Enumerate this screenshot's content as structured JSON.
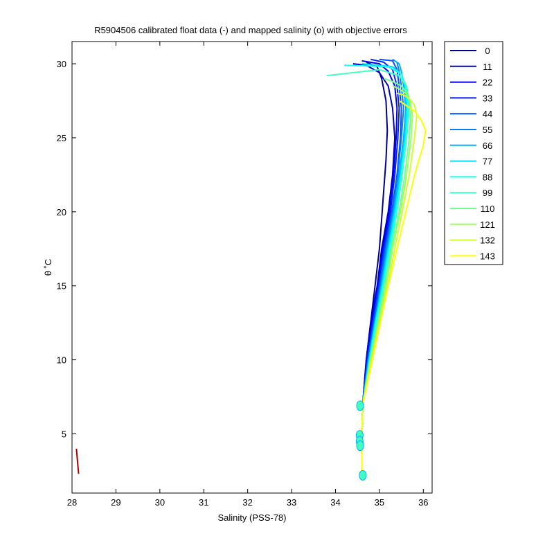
{
  "chart_data": {
    "type": "line",
    "title": "R5904506 calibrated float data (-) and mapped salinity (o) with objective errors",
    "xlabel": "Salinity (PSS-78)",
    "ylabel": "θ ˚C",
    "xlim": [
      28,
      36.2
    ],
    "ylim": [
      1,
      31.5
    ],
    "xticks": [
      28,
      29,
      30,
      31,
      32,
      33,
      34,
      35,
      36
    ],
    "yticks": [
      5,
      10,
      15,
      20,
      25,
      30
    ],
    "grid": false,
    "legend_position": "outside-right",
    "series": [
      {
        "name": "0",
        "color": "#00008f",
        "x": [
          34.6,
          34.6,
          34.62,
          34.7,
          34.8,
          34.9,
          35.0,
          35.05,
          35.1,
          35.15,
          35.18,
          35.15,
          35.05,
          34.95,
          34.7
        ],
        "y": [
          2.2,
          4.5,
          7.0,
          10.0,
          12.5,
          15.0,
          17.5,
          19.5,
          21.5,
          23.5,
          25.5,
          27.5,
          29.0,
          29.8,
          30.1
        ]
      },
      {
        "name": "11",
        "color": "#0000bf",
        "x": [
          34.6,
          34.6,
          34.62,
          34.7,
          34.8,
          34.95,
          35.05,
          35.2,
          35.3,
          35.35,
          35.3,
          35.2,
          35.0,
          34.7,
          34.4
        ],
        "y": [
          2.2,
          4.5,
          7.0,
          10.0,
          12.5,
          15.0,
          17.5,
          20.0,
          22.5,
          25.0,
          27.0,
          28.5,
          29.4,
          29.9,
          30.0
        ]
      },
      {
        "name": "22",
        "color": "#0000ef",
        "x": [
          34.6,
          34.6,
          34.62,
          34.72,
          34.82,
          34.96,
          35.08,
          35.22,
          35.32,
          35.38,
          35.4,
          35.35,
          35.2,
          35.0,
          34.6
        ],
        "y": [
          2.2,
          4.5,
          7.0,
          10.0,
          12.5,
          15.0,
          17.5,
          20.0,
          22.5,
          25.0,
          27.0,
          28.5,
          29.5,
          30.0,
          30.2
        ]
      },
      {
        "name": "33",
        "color": "#001fff",
        "x": [
          34.6,
          34.6,
          34.62,
          34.72,
          34.84,
          34.98,
          35.1,
          35.25,
          35.35,
          35.42,
          35.45,
          35.4,
          35.3,
          35.1,
          34.8
        ],
        "y": [
          2.2,
          4.5,
          7.0,
          10.0,
          12.5,
          15.0,
          17.5,
          20.0,
          22.5,
          25.0,
          27.0,
          28.5,
          29.6,
          30.1,
          30.3
        ]
      },
      {
        "name": "44",
        "color": "#004fff",
        "x": [
          34.6,
          34.6,
          34.62,
          34.74,
          34.86,
          35.0,
          35.12,
          35.28,
          35.4,
          35.48,
          35.5,
          35.45,
          35.4,
          35.3,
          35.0
        ],
        "y": [
          2.2,
          4.5,
          7.0,
          10.0,
          12.5,
          15.0,
          17.5,
          20.0,
          22.5,
          25.0,
          27.0,
          28.5,
          29.6,
          30.2,
          30.3
        ]
      },
      {
        "name": "55",
        "color": "#007fff",
        "x": [
          34.6,
          34.6,
          34.62,
          34.74,
          34.88,
          35.02,
          35.15,
          35.3,
          35.42,
          35.5,
          35.55,
          35.5,
          35.45,
          35.4,
          35.3
        ],
        "y": [
          2.2,
          4.5,
          7.0,
          10.0,
          12.5,
          15.0,
          17.5,
          20.0,
          22.5,
          25.0,
          27.0,
          28.5,
          29.5,
          30.1,
          30.3
        ]
      },
      {
        "name": "66",
        "color": "#00afff",
        "x": [
          34.6,
          34.6,
          34.62,
          34.76,
          34.9,
          35.04,
          35.18,
          35.33,
          35.45,
          35.55,
          35.6,
          35.55,
          35.5,
          35.45,
          35.35
        ],
        "y": [
          2.2,
          4.5,
          7.0,
          10.0,
          12.5,
          15.0,
          17.5,
          20.0,
          22.5,
          25.0,
          27.0,
          28.5,
          29.5,
          30.0,
          30.2
        ]
      },
      {
        "name": "77",
        "color": "#00dfff",
        "x": [
          34.6,
          34.6,
          34.62,
          34.76,
          34.9,
          35.06,
          35.2,
          35.35,
          35.48,
          35.58,
          35.62,
          35.58,
          35.5,
          35.3,
          34.6
        ],
        "y": [
          2.2,
          4.5,
          7.0,
          10.0,
          12.5,
          15.0,
          17.5,
          20.0,
          22.5,
          25.0,
          27.0,
          28.5,
          29.3,
          29.8,
          30.0
        ]
      },
      {
        "name": "88",
        "color": "#10ffef",
        "x": [
          34.6,
          34.6,
          34.62,
          34.78,
          34.92,
          35.08,
          35.22,
          35.38,
          35.5,
          35.6,
          35.65,
          35.6,
          35.5,
          35.2,
          34.2
        ],
        "y": [
          2.2,
          4.5,
          7.0,
          10.0,
          12.5,
          15.0,
          17.5,
          20.0,
          22.5,
          25.0,
          27.0,
          28.5,
          29.3,
          29.8,
          29.9
        ]
      },
      {
        "name": "99",
        "color": "#40ffbf",
        "x": [
          34.6,
          34.6,
          34.62,
          34.78,
          34.94,
          35.1,
          35.25,
          35.4,
          35.52,
          35.62,
          35.68,
          35.62,
          35.45,
          35.0,
          33.8
        ],
        "y": [
          2.2,
          4.5,
          7.0,
          10.0,
          12.5,
          15.0,
          17.5,
          20.0,
          22.5,
          25.0,
          27.0,
          28.5,
          29.2,
          29.6,
          29.2
        ]
      },
      {
        "name": "110",
        "color": "#70ff8f",
        "x": [
          34.6,
          34.6,
          34.62,
          34.8,
          34.96,
          35.12,
          35.28,
          35.45,
          35.58,
          35.68,
          35.72,
          35.65,
          35.5,
          35.3,
          35.1
        ],
        "y": [
          2.2,
          4.5,
          7.0,
          10.0,
          12.5,
          15.0,
          17.5,
          20.0,
          22.5,
          25.0,
          27.0,
          28.0,
          28.5,
          28.8,
          29.0
        ]
      },
      {
        "name": "121",
        "color": "#9fff5f",
        "x": [
          34.6,
          34.6,
          34.62,
          34.8,
          34.98,
          35.15,
          35.3,
          35.48,
          35.62,
          35.72,
          35.75,
          35.7,
          35.6,
          35.45,
          35.3
        ],
        "y": [
          2.2,
          4.5,
          7.0,
          10.0,
          12.5,
          15.0,
          17.5,
          20.0,
          22.5,
          25.0,
          26.5,
          27.5,
          28.0,
          28.3,
          28.5
        ]
      },
      {
        "name": "132",
        "color": "#cfff2f",
        "x": [
          34.6,
          34.6,
          34.62,
          34.82,
          35.0,
          35.18,
          35.35,
          35.52,
          35.68,
          35.8,
          35.85,
          35.8,
          35.7,
          35.55,
          35.4
        ],
        "y": [
          2.2,
          4.5,
          7.0,
          10.0,
          12.5,
          15.0,
          17.5,
          20.0,
          22.5,
          25.0,
          26.5,
          27.2,
          27.6,
          27.9,
          28.0
        ]
      },
      {
        "name": "143",
        "color": "#ffff00",
        "x": [
          34.6,
          34.6,
          34.62,
          34.84,
          35.02,
          35.2,
          35.4,
          35.6,
          35.8,
          36.0,
          36.05,
          35.95,
          35.8,
          35.6,
          35.45
        ],
        "y": [
          2.2,
          4.5,
          7.0,
          10.0,
          12.5,
          15.0,
          17.5,
          20.0,
          22.5,
          24.5,
          25.5,
          26.2,
          26.8,
          27.2,
          27.5
        ]
      }
    ],
    "red_line": {
      "color": "#aa0000",
      "x": [
        28.1,
        28.15
      ],
      "y": [
        4.0,
        2.3
      ]
    },
    "mapped_points": {
      "x": [
        34.56,
        34.55,
        34.55,
        34.56,
        34.62
      ],
      "y": [
        6.9,
        4.9,
        4.5,
        4.2,
        2.2
      ]
    }
  },
  "legend": {
    "entries": [
      {
        "label": "0",
        "color": "#00008f"
      },
      {
        "label": "11",
        "color": "#0000bf"
      },
      {
        "label": "22",
        "color": "#0000ef"
      },
      {
        "label": "33",
        "color": "#001fff"
      },
      {
        "label": "44",
        "color": "#004fff"
      },
      {
        "label": "55",
        "color": "#007fff"
      },
      {
        "label": "66",
        "color": "#00afff"
      },
      {
        "label": "77",
        "color": "#00dfff"
      },
      {
        "label": "88",
        "color": "#10ffef"
      },
      {
        "label": "99",
        "color": "#40ffbf"
      },
      {
        "label": "110",
        "color": "#70ff8f"
      },
      {
        "label": "121",
        "color": "#9fff5f"
      },
      {
        "label": "132",
        "color": "#cfff2f"
      },
      {
        "label": "143",
        "color": "#ffff00"
      }
    ]
  }
}
